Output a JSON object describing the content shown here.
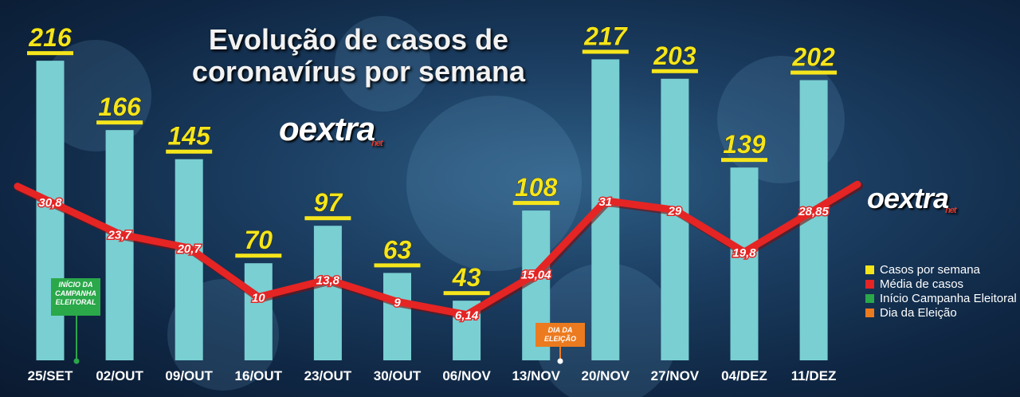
{
  "title_line1": "Evolução de casos de",
  "title_line2": "coronavírus por semana",
  "logo": {
    "text": "oextra",
    "suffix": "net"
  },
  "legend": [
    {
      "label": "Casos por semana",
      "color": "#f5e51b"
    },
    {
      "label": "Média de casos",
      "color": "#e52424"
    },
    {
      "label": "Início Campanha Eleitoral",
      "color": "#2aa84a"
    },
    {
      "label": "Dia da Eleição",
      "color": "#ec7a1f"
    }
  ],
  "annotations": {
    "campaign_start": "INÍCIO DA CAMPANHA ELEITORAL",
    "election_day": "DIA DA ELEIÇÃO"
  },
  "chart_data": {
    "type": "bar",
    "categories": [
      "25/SET",
      "02/OUT",
      "09/OUT",
      "16/OUT",
      "23/OUT",
      "30/OUT",
      "06/NOV",
      "13/NOV",
      "20/NOV",
      "27/NOV",
      "04/DEZ",
      "11/DEZ"
    ],
    "series": [
      {
        "name": "Casos por semana",
        "type": "bar",
        "values": [
          216,
          166,
          145,
          70,
          97,
          63,
          43,
          108,
          217,
          203,
          139,
          202
        ],
        "labels": [
          "216",
          "166",
          "145",
          "70",
          "97",
          "63",
          "43",
          "108",
          "217",
          "203",
          "139",
          "202"
        ]
      },
      {
        "name": "Média de casos",
        "type": "line",
        "values": [
          30.8,
          23.7,
          20.7,
          10,
          13.8,
          9,
          6.14,
          15.04,
          31,
          29,
          19.8,
          28.85
        ],
        "labels": [
          "30,8",
          "23,7",
          "20,7",
          "10",
          "13,8",
          "9",
          "6,14",
          "15,04",
          "31",
          "29",
          "19,8",
          "28,85"
        ]
      }
    ],
    "colors": {
      "bar": "#79cfd2",
      "line": "#e52424",
      "label": "#f5e51b"
    },
    "event_markers": [
      {
        "category": "25/SET",
        "label": "INÍCIO DA CAMPANHA ELEITORAL",
        "color": "#2aa84a"
      },
      {
        "category": "13/NOV",
        "label": "DIA DA ELEIÇÃO",
        "color": "#ec7a1f"
      }
    ],
    "grid": false,
    "legend_position": "right"
  }
}
